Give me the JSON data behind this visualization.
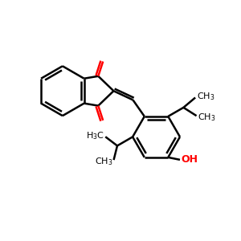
{
  "background_color": "#ffffff",
  "bond_color": "#000000",
  "oxygen_color": "#ff0000",
  "line_width": 1.8,
  "figsize": [
    3.0,
    3.0
  ],
  "dpi": 100,
  "xlim": [
    0,
    10
  ],
  "ylim": [
    0,
    10
  ]
}
